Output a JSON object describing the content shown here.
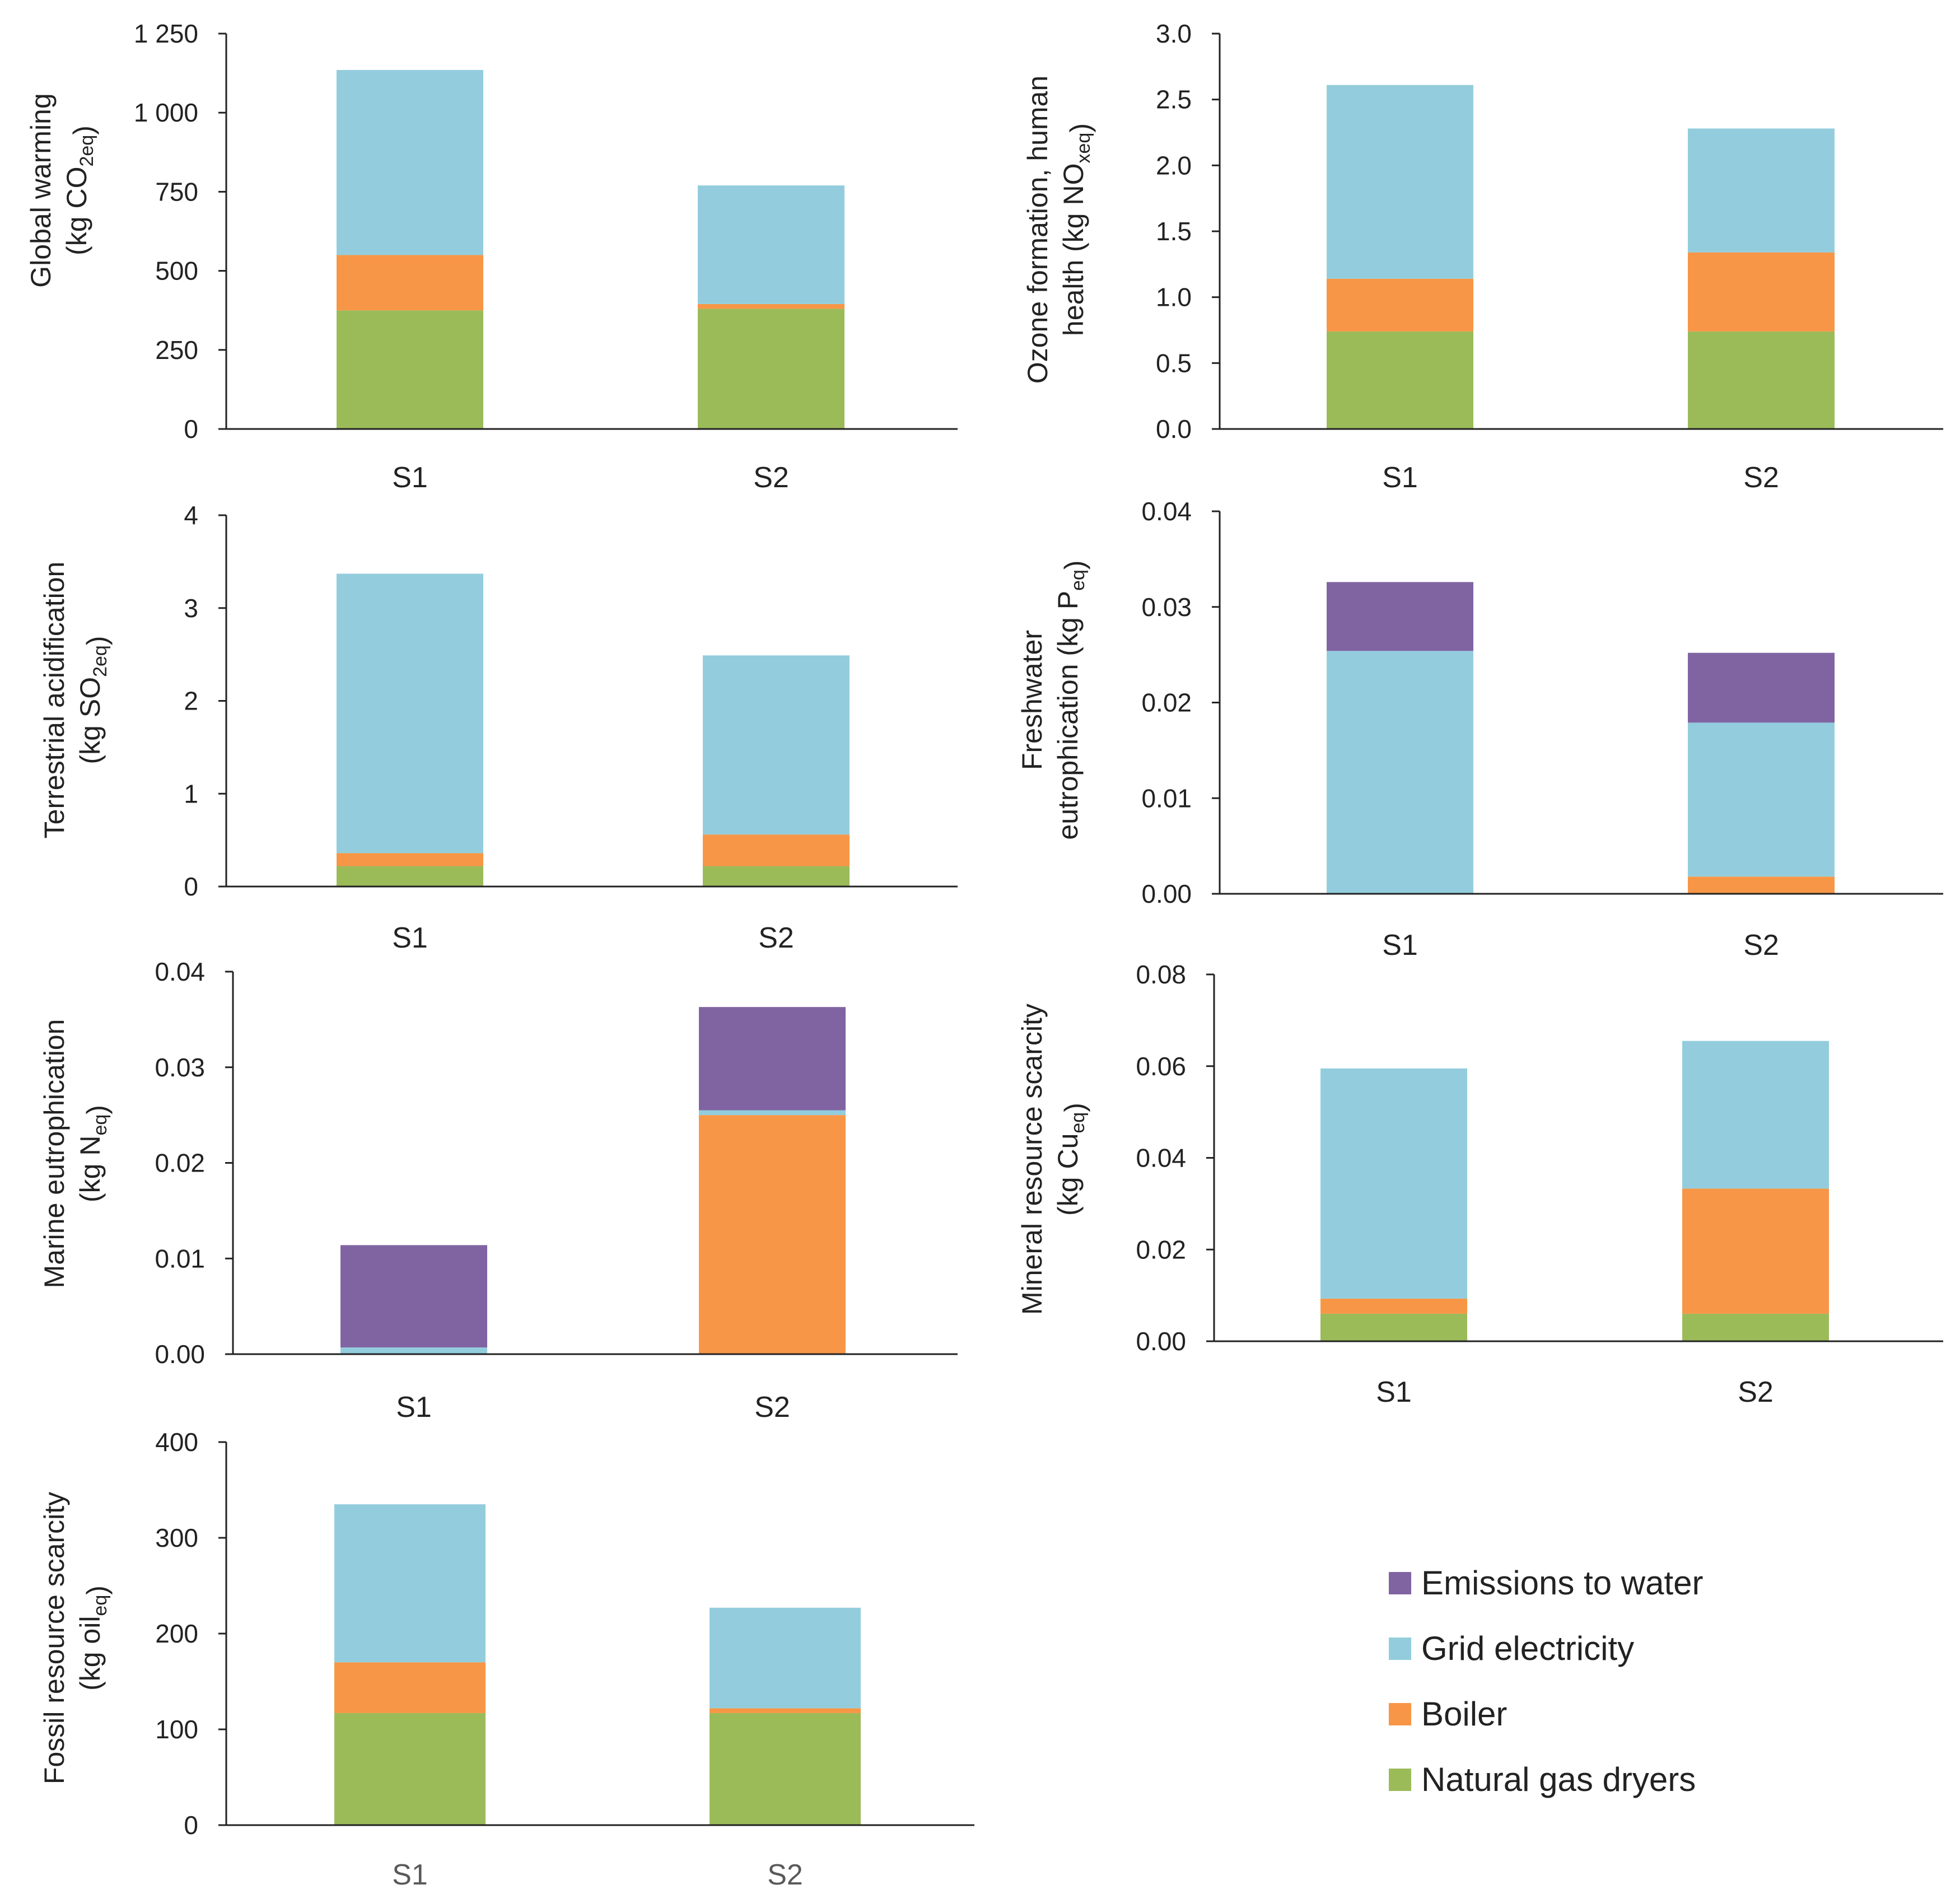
{
  "legend": {
    "items": [
      {
        "name": "Emissions to water",
        "color": "#8064a2"
      },
      {
        "name": "Grid electricity",
        "color": "#93cddd"
      },
      {
        "name": "Boiler",
        "color": "#f79646"
      },
      {
        "name": "Natural gas dryers",
        "color": "#9bbb59"
      }
    ]
  },
  "chart_data": [
    {
      "id": "global-warming",
      "type": "bar",
      "stacked": true,
      "ylabel_lines": [
        [
          "Global warming"
        ],
        [
          "(kg CO",
          {
            "sub": "2eq"
          },
          ")"
        ]
      ],
      "ylim": [
        0,
        1250
      ],
      "yticks": [
        0,
        250,
        500,
        750,
        1000,
        1250
      ],
      "ytick_labels": [
        "0",
        "250",
        "500",
        "750",
        "1 000",
        "1 250"
      ],
      "categories": [
        "S1",
        "S2"
      ],
      "category_label_style": "normal",
      "series": [
        {
          "name": "Natural gas dryers",
          "values": [
            375,
            380
          ]
        },
        {
          "name": "Boiler",
          "values": [
            175,
            15
          ]
        },
        {
          "name": "Grid electricity",
          "values": [
            585,
            375
          ]
        }
      ]
    },
    {
      "id": "ozone-formation",
      "type": "bar",
      "stacked": true,
      "ylabel_lines": [
        [
          "Ozone formation, human"
        ],
        [
          "health (kg NO",
          {
            "sub": "xeq"
          },
          ")"
        ]
      ],
      "ylim": [
        0,
        3.0
      ],
      "yticks": [
        0,
        0.5,
        1.0,
        1.5,
        2.0,
        2.5,
        3.0
      ],
      "ytick_labels": [
        "0.0",
        "0.5",
        "1.0",
        "1.5",
        "2.0",
        "2.5",
        "3.0"
      ],
      "categories": [
        "S1",
        "S2"
      ],
      "category_label_style": "normal",
      "series": [
        {
          "name": "Natural gas dryers",
          "values": [
            0.74,
            0.74
          ]
        },
        {
          "name": "Boiler",
          "values": [
            0.4,
            0.6
          ]
        },
        {
          "name": "Grid electricity",
          "values": [
            1.47,
            0.94
          ]
        }
      ]
    },
    {
      "id": "terrestrial-acidification",
      "type": "bar",
      "stacked": true,
      "ylabel_lines": [
        [
          "Terrestrial acidification"
        ],
        [
          "(kg SO",
          {
            "sub": "2eq"
          },
          ")"
        ]
      ],
      "ylim": [
        0,
        4
      ],
      "yticks": [
        0,
        1,
        2,
        3,
        4
      ],
      "ytick_labels": [
        "0",
        "1",
        "2",
        "3",
        "4"
      ],
      "categories": [
        "S1",
        "S2"
      ],
      "category_label_style": "normal",
      "series": [
        {
          "name": "Natural gas dryers",
          "values": [
            0.22,
            0.22
          ]
        },
        {
          "name": "Boiler",
          "values": [
            0.14,
            0.34
          ]
        },
        {
          "name": "Grid electricity",
          "values": [
            3.01,
            1.93
          ]
        }
      ]
    },
    {
      "id": "freshwater-eutrophication",
      "type": "bar",
      "stacked": true,
      "ylabel_lines": [
        [
          "Freshwater"
        ],
        [
          "eutrophication (kg P",
          {
            "sub": "eq"
          },
          ")"
        ]
      ],
      "ylim": [
        0,
        0.04
      ],
      "yticks": [
        0,
        0.01,
        0.02,
        0.03,
        0.04
      ],
      "ytick_labels": [
        "0.00",
        "0.01",
        "0.02",
        "0.03",
        "0.04"
      ],
      "categories": [
        "S1",
        "S2"
      ],
      "category_label_style": "normal",
      "series": [
        {
          "name": "Natural gas dryers",
          "values": [
            0.0,
            0.0
          ]
        },
        {
          "name": "Boiler",
          "values": [
            0.0,
            0.0018
          ]
        },
        {
          "name": "Grid electricity",
          "values": [
            0.0254,
            0.0161
          ]
        },
        {
          "name": "Emissions to water",
          "values": [
            0.0072,
            0.0073
          ]
        }
      ]
    },
    {
      "id": "marine-eutrophication",
      "type": "bar",
      "stacked": true,
      "ylabel_lines": [
        [
          "Marine eutrophication"
        ],
        [
          "(kg N",
          {
            "sub": "eq"
          },
          ")"
        ]
      ],
      "ylim": [
        0,
        0.04
      ],
      "yticks": [
        0,
        0.01,
        0.02,
        0.03,
        0.04
      ],
      "ytick_labels": [
        "0.00",
        "0.01",
        "0.02",
        "0.03",
        "0.04"
      ],
      "categories": [
        "S1",
        "S2"
      ],
      "category_label_style": "normal",
      "series": [
        {
          "name": "Natural gas dryers",
          "values": [
            0.0,
            0.0
          ]
        },
        {
          "name": "Boiler",
          "values": [
            0.0,
            0.025
          ]
        },
        {
          "name": "Grid electricity",
          "values": [
            0.0007,
            0.0005
          ]
        },
        {
          "name": "Emissions to water",
          "values": [
            0.0107,
            0.0108
          ]
        }
      ]
    },
    {
      "id": "mineral-resource-scarcity",
      "type": "bar",
      "stacked": true,
      "ylabel_lines": [
        [
          "Mineral resource scarcity"
        ],
        [
          "(kg Cu",
          {
            "sub": "eq"
          },
          ")"
        ]
      ],
      "ylim": [
        0,
        0.08
      ],
      "yticks": [
        0,
        0.02,
        0.04,
        0.06,
        0.08
      ],
      "ytick_labels": [
        "0.00",
        "0.02",
        "0.04",
        "0.06",
        "0.08"
      ],
      "categories": [
        "S1",
        "S2"
      ],
      "category_label_style": "normal",
      "series": [
        {
          "name": "Natural gas dryers",
          "values": [
            0.006,
            0.006
          ]
        },
        {
          "name": "Boiler",
          "values": [
            0.0033,
            0.0273
          ]
        },
        {
          "name": "Grid electricity",
          "values": [
            0.0502,
            0.0322
          ]
        }
      ]
    },
    {
      "id": "fossil-resource-scarcity",
      "type": "bar",
      "stacked": true,
      "ylabel_lines": [
        [
          "Fossil resource scarcity"
        ],
        [
          "(kg oil",
          {
            "sub": "eq"
          },
          ")"
        ]
      ],
      "ylim": [
        0,
        400
      ],
      "yticks": [
        0,
        100,
        200,
        300,
        400
      ],
      "ytick_labels": [
        "0",
        "100",
        "200",
        "300",
        "400"
      ],
      "categories": [
        "S1",
        "S2"
      ],
      "category_label_style": "muted",
      "series": [
        {
          "name": "Natural gas dryers",
          "values": [
            117,
            117
          ]
        },
        {
          "name": "Boiler",
          "values": [
            53,
            5
          ]
        },
        {
          "name": "Grid electricity",
          "values": [
            165,
            105
          ]
        }
      ]
    }
  ]
}
